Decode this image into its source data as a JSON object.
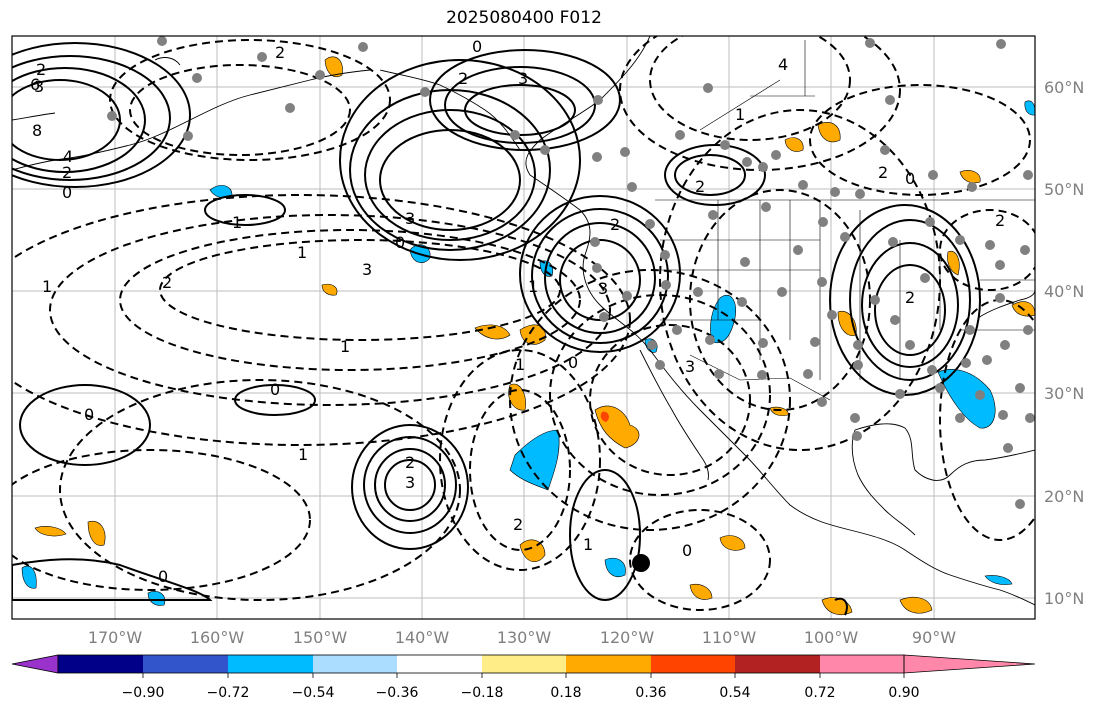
{
  "title": "2025080400 F012",
  "lon_labels": [
    "170°W",
    "160°W",
    "150°W",
    "140°W",
    "130°W",
    "120°W",
    "110°W",
    "100°W",
    "90°W"
  ],
  "lat_labels": [
    "60°N",
    "50°N",
    "40°N",
    "30°N",
    "20°N",
    "10°N"
  ],
  "colorbar": {
    "ticks": [
      "−0.90",
      "−0.72",
      "−0.54",
      "−0.36",
      "−0.18",
      "0.18",
      "0.36",
      "0.54",
      "0.72",
      "0.90"
    ],
    "colors": [
      "#9933cc",
      "#000088",
      "#3355cc",
      "#00bbff",
      "#aaddff",
      "#ffffff",
      "#ffee88",
      "#ffaa00",
      "#ff4400",
      "#b22222",
      "#ff88aa"
    ]
  },
  "contour_labels": [
    "2",
    "3",
    "6",
    "8",
    "4",
    "2",
    "0",
    "1",
    "2",
    "3",
    "2",
    "3",
    "0",
    "1",
    "2",
    "3",
    "1",
    "0",
    "2",
    "1",
    "0",
    "2",
    "1",
    "2",
    "3",
    "0",
    "1",
    "2",
    "3",
    "0",
    "1",
    "0",
    "1",
    "2",
    "0",
    "4",
    "3",
    "2",
    "1",
    "0",
    "2"
  ]
}
